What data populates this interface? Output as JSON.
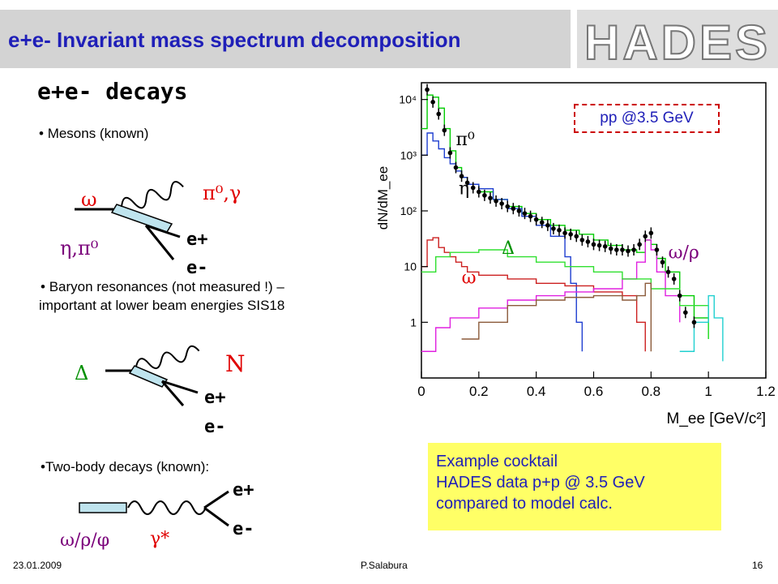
{
  "header": {
    "title": "e+e- Invariant mass spectrum decomposition",
    "logo": "HADES"
  },
  "section_title": "e+e- decays",
  "mesons": {
    "bullet": "Mesons (known)",
    "parent": "ω",
    "initial": "η,π⁰",
    "products": "π⁰,γ",
    "e_plus": "e+",
    "e_minus": "e-"
  },
  "baryons": {
    "bullet_line1": "Baryon resonances (not measured !) –",
    "bullet_line2": "important at lower beam energies SIS18",
    "parent": "Δ",
    "products": "N",
    "e_plus": "e+",
    "e_minus": "e-"
  },
  "two_body": {
    "bullet": "Two-body decays (known):",
    "parent": "ω/ρ/φ",
    "photon": "γ*",
    "e_plus": "e+",
    "e_minus": "e-"
  },
  "callout": {
    "line1": "Example cocktail",
    "line2": "HADES data p+p @ 3.5 GeV",
    "line3": "compared to model calc."
  },
  "footer": {
    "date": "23.01.2009",
    "author": "P.Salabura",
    "page": "16"
  },
  "chart_data": {
    "type": "line",
    "title": "",
    "annotation": "pp @3.5 GeV",
    "xlabel": "M_ee [GeV/c²]",
    "ylabel": "dN/dM_ee",
    "xlim": [
      0,
      1.2
    ],
    "ylim": [
      0.1,
      20000
    ],
    "y_scale": "log",
    "x_ticks": [
      "0",
      "0.2",
      "0.4",
      "0.6",
      "0.8",
      "1",
      "1.2"
    ],
    "y_ticks": [
      {
        "label": "1",
        "value": 1
      },
      {
        "label": "10",
        "value": 10
      },
      {
        "label": "10²",
        "value": 100
      },
      {
        "label": "10³",
        "value": 1000
      },
      {
        "label": "10⁴",
        "value": 10000
      }
    ],
    "labels": [
      {
        "text": "π⁰",
        "x": 0.12,
        "y": 1500,
        "color": "#000000"
      },
      {
        "text": "η",
        "x": 0.13,
        "y": 200,
        "color": "#000000"
      },
      {
        "text": "Δ",
        "x": 0.28,
        "y": 17,
        "color": "#009000"
      },
      {
        "text": "ω",
        "x": 0.14,
        "y": 5,
        "color": "#e00000"
      },
      {
        "text": "ω/ρ",
        "x": 0.86,
        "y": 14,
        "color": "#7a007a"
      }
    ],
    "series": [
      {
        "color": "#00cc00",
        "x": [
          0.0,
          0.02,
          0.04,
          0.06,
          0.08,
          0.1,
          0.12,
          0.14,
          0.16,
          0.2,
          0.25,
          0.3,
          0.35,
          0.4,
          0.45,
          0.5,
          0.55,
          0.6,
          0.65,
          0.7,
          0.75,
          0.78,
          0.8,
          0.82,
          0.85,
          0.9,
          0.95,
          1.0
        ],
        "values": [
          3000,
          12000,
          11000,
          7000,
          3000,
          1200,
          600,
          400,
          300,
          220,
          160,
          120,
          90,
          70,
          55,
          45,
          38,
          30,
          24,
          20,
          18,
          30,
          25,
          14,
          8,
          3,
          1.2,
          0.5
        ]
      },
      {
        "color": "#1f3fd0",
        "x": [
          0.0,
          0.02,
          0.04,
          0.06,
          0.08,
          0.1,
          0.12,
          0.14,
          0.16,
          0.2,
          0.25,
          0.3,
          0.35,
          0.4,
          0.45,
          0.5,
          0.52,
          0.54,
          0.56
        ],
        "values": [
          1000,
          2500,
          1800,
          1300,
          900,
          700,
          520,
          400,
          300,
          250,
          160,
          110,
          80,
          55,
          35,
          15,
          5,
          1,
          0.3
        ]
      },
      {
        "color": "#cc2020",
        "x": [
          0.0,
          0.02,
          0.04,
          0.06,
          0.08,
          0.1,
          0.12,
          0.14,
          0.16,
          0.2,
          0.3,
          0.4,
          0.5,
          0.6,
          0.7,
          0.75,
          0.78
        ],
        "values": [
          10,
          30,
          33,
          22,
          18,
          15,
          12,
          10,
          8,
          7,
          6,
          5,
          4.5,
          3.5,
          3,
          1,
          0.3
        ]
      },
      {
        "color": "#e020e0",
        "x": [
          0.0,
          0.05,
          0.1,
          0.2,
          0.3,
          0.4,
          0.5,
          0.6,
          0.7,
          0.75,
          0.78,
          0.8,
          0.82,
          0.85,
          0.9
        ],
        "values": [
          0.3,
          0.8,
          1.2,
          1.8,
          2.5,
          3,
          3.5,
          4,
          6,
          12,
          30,
          20,
          8,
          3,
          1
        ]
      },
      {
        "color": "#30e030",
        "x": [
          0.0,
          0.05,
          0.1,
          0.2,
          0.3,
          0.4,
          0.5,
          0.6,
          0.7,
          0.8,
          0.9,
          1.0
        ],
        "values": [
          8,
          15,
          18,
          20,
          15,
          12,
          10,
          8,
          6,
          4,
          2,
          0.5
        ]
      },
      {
        "color": "#8b5a3a",
        "x": [
          0.14,
          0.2,
          0.3,
          0.4,
          0.5,
          0.6,
          0.7,
          0.75,
          0.78,
          0.8
        ],
        "values": [
          0.5,
          1,
          2,
          2.5,
          2.8,
          3,
          2.5,
          3,
          5,
          0.3
        ]
      },
      {
        "color": "#20d0d0",
        "x": [
          0.9,
          0.95,
          1.0,
          1.02,
          1.05
        ],
        "values": [
          0.3,
          1,
          3,
          1.2,
          0.2
        ]
      }
    ],
    "data_points": {
      "x": [
        0.02,
        0.04,
        0.06,
        0.08,
        0.1,
        0.12,
        0.14,
        0.16,
        0.18,
        0.2,
        0.22,
        0.24,
        0.26,
        0.28,
        0.3,
        0.32,
        0.34,
        0.36,
        0.38,
        0.4,
        0.42,
        0.44,
        0.46,
        0.48,
        0.5,
        0.52,
        0.54,
        0.56,
        0.58,
        0.6,
        0.62,
        0.64,
        0.66,
        0.68,
        0.7,
        0.72,
        0.74,
        0.76,
        0.78,
        0.8,
        0.82,
        0.84,
        0.86,
        0.88,
        0.9,
        0.92,
        0.95
      ],
      "values": [
        15000,
        9000,
        5500,
        2800,
        1100,
        600,
        420,
        320,
        260,
        220,
        190,
        170,
        150,
        135,
        120,
        110,
        100,
        90,
        80,
        70,
        62,
        55,
        48,
        45,
        40,
        38,
        35,
        30,
        28,
        25,
        24,
        23,
        21,
        20,
        20,
        19,
        20,
        25,
        35,
        40,
        20,
        12,
        8,
        6,
        3,
        1.5,
        1
      ]
    }
  }
}
